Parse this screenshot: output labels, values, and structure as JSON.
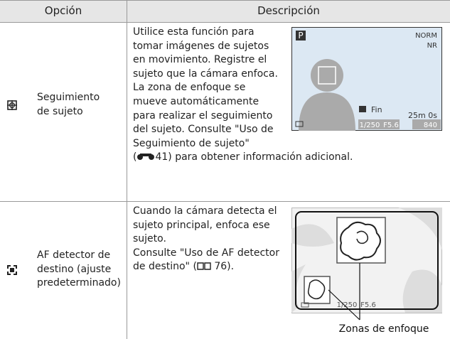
{
  "header": {
    "option": "Opción",
    "description": "Descripción"
  },
  "rows": [
    {
      "option_lines": [
        "Seguimiento",
        "de sujeto"
      ],
      "description_lines": [
        "Utilice esta función para",
        "tomar imágenes de sujetos",
        "en movimiento. Registre el",
        "sujeto que la cámara enfoca.",
        "La zona de enfoque se",
        "mueve automáticamente",
        "para realizar el seguimiento",
        "del sujeto. Consulte \"Uso de",
        "Seguimiento de sujeto\""
      ],
      "reference": {
        "before": "(",
        "after": "41) para obtener información adicional."
      },
      "screen": {
        "mode": "P",
        "quality": "NORM",
        "noise": "NR",
        "ok": "Fin",
        "time": "25m 0s",
        "shutter": "1/250",
        "aperture": "F5.6",
        "shots": "840"
      }
    },
    {
      "option_lines": [
        "AF detector de",
        "destino (ajuste",
        "predeterminado)"
      ],
      "description_lines": [
        "Cuando la cámara detecta el",
        "sujeto principal, enfoca ese",
        "sujeto.",
        "Consulte \"Uso de AF detector"
      ],
      "reference": {
        "before": "de destino\" (",
        "after": " 76)."
      },
      "screen": {
        "shutter": "1/250",
        "aperture": "F5.6"
      },
      "caption": "Zonas de enfoque"
    }
  ]
}
